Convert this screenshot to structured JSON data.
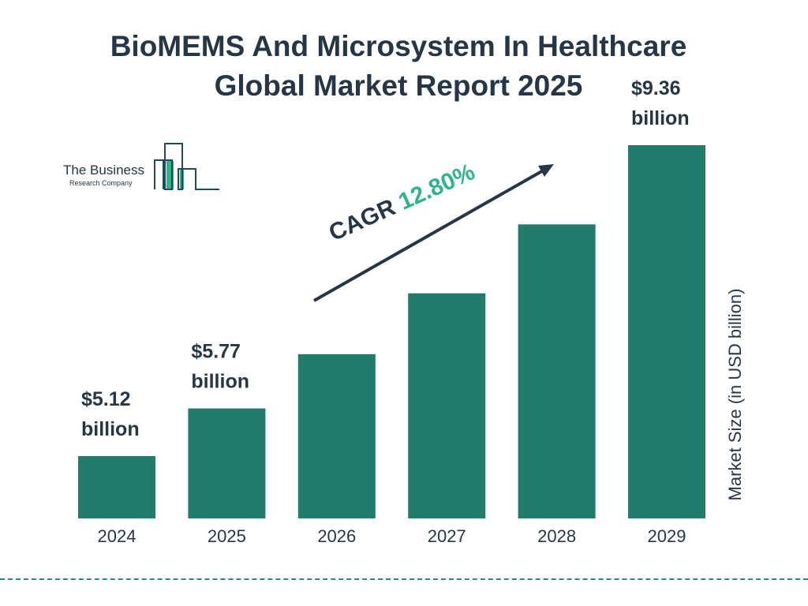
{
  "chart_data": {
    "type": "bar",
    "title": "BioMEMS And Microsystem In Healthcare Global Market Report 2025",
    "categories": [
      "2024",
      "2025",
      "2026",
      "2027",
      "2028",
      "2029"
    ],
    "values": [
      5.12,
      5.77,
      6.51,
      7.34,
      8.28,
      9.36
    ],
    "data_labels": [
      {
        "category": "2024",
        "line1": "$5.12",
        "line2": "billion"
      },
      {
        "category": "2025",
        "line1": "$5.77",
        "line2": "billion"
      },
      {
        "category": "2029",
        "line1": "$9.36",
        "line2": "billion"
      }
    ],
    "ylabel": "Market Size (in USD billion)",
    "xlabel": "",
    "annotation": {
      "label": "CAGR",
      "value": "12.80%"
    },
    "grid": false,
    "colors": {
      "bar": "#217c6b",
      "text": "#253746",
      "accent": "#2fb58b"
    }
  },
  "header": {
    "title_line1": "BioMEMS And Microsystem In Healthcare",
    "title_line2": "Global Market Report 2025"
  },
  "logo": {
    "line1": "The Business",
    "line2": "Research Company"
  }
}
